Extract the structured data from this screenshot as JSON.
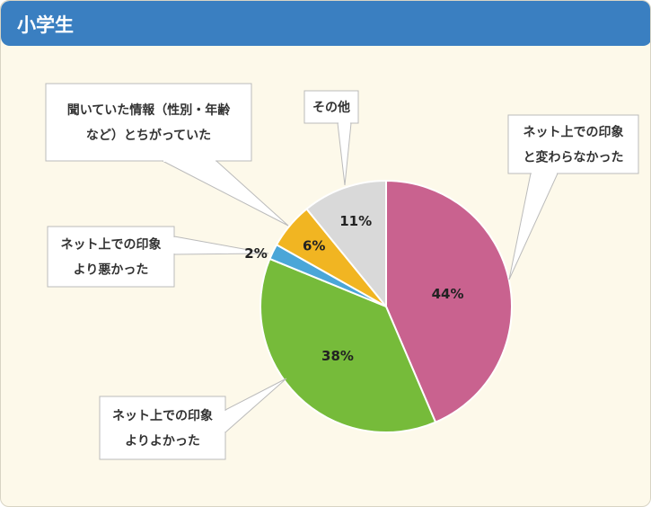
{
  "header": {
    "title": "小学生"
  },
  "chart_data": {
    "type": "pie",
    "title": "小学生",
    "slices": [
      {
        "label": "ネット上での印象と変わらなかった",
        "value": 44,
        "pct_label": "44%",
        "color": "#c9628f",
        "lines": [
          "ネット上での印象",
          "と変わらなかった"
        ]
      },
      {
        "label": "ネット上での印象よりよかった",
        "value": 38,
        "pct_label": "38%",
        "color": "#76bb3a",
        "lines": [
          "ネット上での印象",
          "よりよかった"
        ]
      },
      {
        "label": "ネット上での印象より悪かった",
        "value": 2,
        "pct_label": "2%",
        "color": "#4aa6d8",
        "lines": [
          "ネット上での印象",
          "より悪かった"
        ]
      },
      {
        "label": "聞いていた情報（性別・年齢など）とちがっていた",
        "value": 6,
        "pct_label": "6%",
        "color": "#f1b522",
        "lines": [
          "聞いていた情報（性別・年齢",
          "など）とちがっていた"
        ]
      },
      {
        "label": "その他",
        "value": 11,
        "pct_label": "11%",
        "color": "#d9d9d9",
        "lines": [
          "その他"
        ]
      }
    ]
  }
}
